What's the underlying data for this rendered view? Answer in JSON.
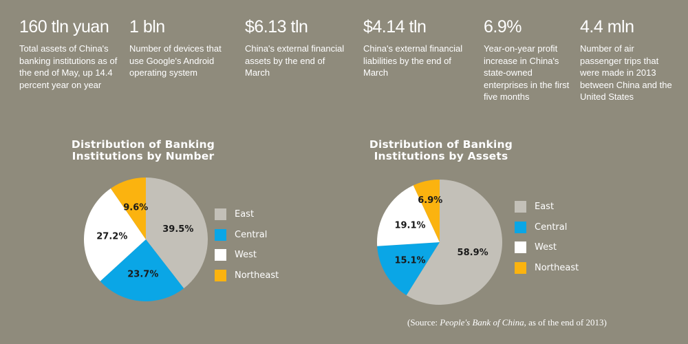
{
  "stats": [
    {
      "value": "160 tln yuan",
      "desc": "Total assets of China's banking institutions as of the end of May, up 14.4 percent year on year"
    },
    {
      "value": "1 bln",
      "desc": "Number of devices that use Google's Android operating system"
    },
    {
      "value": "$6.13 tln",
      "desc": "China's external financial assets by the end of March"
    },
    {
      "value": "$4.14 tln",
      "desc": "China's external financial liabilities by the end of March"
    },
    {
      "value": "6.9%",
      "desc": "Year-on-year profit increase in China's state-owned enterprises in the first five months"
    },
    {
      "value": "4.4 mln",
      "desc": "Number of air passenger trips that were made in 2013 between China and the United States"
    }
  ],
  "colors": {
    "East": "#c3c0b8",
    "Central": "#0aa6e6",
    "West": "#ffffff",
    "Northeast": "#fbb30f",
    "background": "#8f8b7c"
  },
  "chart_data": [
    {
      "type": "pie",
      "title": "Distribution of Banking Institutions by Number",
      "categories": [
        "East",
        "Central",
        "West",
        "Northeast"
      ],
      "values": [
        39.5,
        23.7,
        27.2,
        9.6
      ],
      "labels": [
        "39.5%",
        "23.7%",
        "27.2%",
        "9.6%"
      ],
      "legend": "right"
    },
    {
      "type": "pie",
      "title": "Distribution of Banking Institutions by Assets",
      "categories": [
        "East",
        "Central",
        "West",
        "Northeast"
      ],
      "values": [
        58.9,
        15.1,
        19.1,
        6.9
      ],
      "labels": [
        "58.9%",
        "15.1%",
        "19.1%",
        "6.9%"
      ],
      "legend": "right"
    }
  ],
  "source": {
    "prefix": "(Source: ",
    "publisher": "People's Bank of China,",
    "suffix": "  as of the end of 2013)"
  }
}
